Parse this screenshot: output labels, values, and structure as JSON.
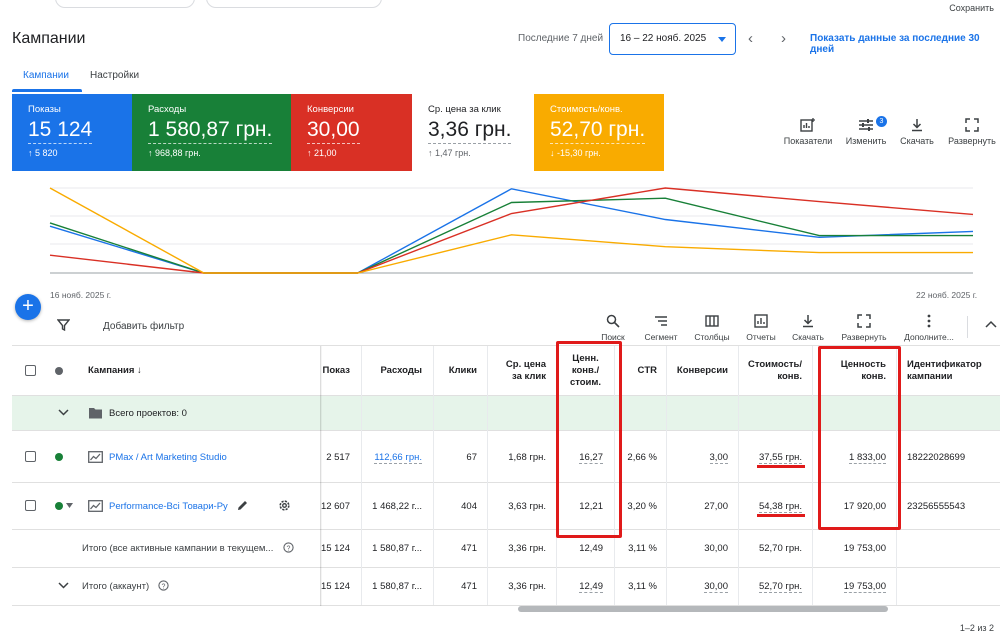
{
  "header": {
    "save_label": "Сохранить",
    "title": "Кампании",
    "range_label": "Последние 7 дней",
    "date_range": "16 – 22 нояб. 2025",
    "show_30_label": "Показать данные за последние 30 дней"
  },
  "tabs": [
    {
      "label": "Кампании",
      "active": true
    },
    {
      "label": "Настройки",
      "active": false
    }
  ],
  "metrics": [
    {
      "label": "Показы",
      "value": "15 124",
      "delta": "↑ 5 820",
      "color": "#1a73e8"
    },
    {
      "label": "Расходы",
      "value": "1 580,87 грн.",
      "delta": "↑ 968,88 грн.",
      "color": "#188038"
    },
    {
      "label": "Конверсии",
      "value": "30,00",
      "delta": "↑ 21,00",
      "color": "#d93025"
    },
    {
      "label": "Ср. цена за клик",
      "value": "3,36 грн.",
      "delta": "↑ 1,47 грн.",
      "color": "#ffffff"
    },
    {
      "label": "Стоимость/конв.",
      "value": "52,70 грн.",
      "delta": "↓ -15,30 грн.",
      "color": "#f9ab00"
    }
  ],
  "card_tools": {
    "indicators": "Показатели",
    "modify": "Изменить",
    "modify_badge": "3",
    "download": "Скачать",
    "expand": "Развернуть"
  },
  "chart_data": {
    "type": "line",
    "x": [
      "16 нояб. 2025",
      "17 нояб. 2025",
      "18 нояб. 2025",
      "19 нояб. 2025",
      "20 нояб. 2025",
      "21 нояб. 2025",
      "22 нояб. 2025"
    ],
    "x_tick_labels": [
      "16 нояб. 2025 г.",
      "22 нояб. 2025 г."
    ],
    "series": [
      {
        "color": "#1a73e8",
        "values": [
          0.55,
          0.0,
          0.0,
          0.99,
          0.63,
          0.42,
          0.49
        ]
      },
      {
        "color": "#188038",
        "values": [
          0.59,
          0.0,
          0.0,
          0.83,
          0.88,
          0.44,
          0.44
        ]
      },
      {
        "color": "#d93025",
        "values": [
          0.21,
          0.0,
          0.0,
          0.7,
          1.0,
          0.84,
          0.69
        ]
      },
      {
        "color": "#f9ab00",
        "values": [
          1.0,
          0.0,
          0.0,
          0.45,
          0.31,
          0.24,
          0.24
        ]
      }
    ],
    "grid": true
  },
  "table_toolbar": {
    "add_filter": "Добавить фильтр",
    "search": "Поиск",
    "segment": "Сегмент",
    "columns": "Столбцы",
    "reports": "Отчеты",
    "download": "Скачать",
    "expand": "Развернуть",
    "more": "Дополните..."
  },
  "table": {
    "headers": {
      "campaign": "Кампания ↓",
      "impressions": "Показ",
      "cost": "Расходы",
      "clicks": "Клики",
      "cpc_1": "Ср. цена",
      "cpc_2": "за клик",
      "vpc_1": "Ценн.",
      "vpc_2": "конв./",
      "vpc_3": "стоим.",
      "ctr": "CTR",
      "conversions": "Конверсии",
      "cpa_1": "Стоимость/",
      "cpa_2": "конв.",
      "conv_value_1": "Ценность",
      "conv_value_2": "конв.",
      "campaign_id_1": "Идентификатор",
      "campaign_id_2": "кампании"
    },
    "group_label": "Всего проектов: 0",
    "rows": [
      {
        "name": "PMax / Art Marketing Studio",
        "impressions": "2 517",
        "cost": "112,66 грн.",
        "clicks": "67",
        "cpc": "1,68 грн.",
        "vpc": "16,27",
        "ctr": "2,66 %",
        "conversions": "3,00",
        "cpa": "37,55 грн.",
        "value": "1 833,00",
        "id": "18222028699"
      },
      {
        "name": "Performance-Всі Товари-Ру",
        "impressions": "12 607",
        "cost": "1 468,22 г...",
        "clicks": "404",
        "cpc": "3,63 грн.",
        "vpc": "12,21",
        "ctr": "3,20 %",
        "conversions": "27,00",
        "cpa": "54,38 грн.",
        "value": "17 920,00",
        "id": "23256555543"
      }
    ],
    "totals": [
      {
        "label": "Итого (все активные кампании в текущем...",
        "impressions": "15 124",
        "cost": "1 580,87 г...",
        "clicks": "471",
        "cpc": "3,36 грн.",
        "vpc": "12,49",
        "ctr": "3,11 %",
        "conversions": "30,00",
        "cpa": "52,70 грн.",
        "value": "19 753,00"
      },
      {
        "label": "Итого (аккаунт)",
        "impressions": "15 124",
        "cost": "1 580,87 г...",
        "clicks": "471",
        "cpc": "3,36 грн.",
        "vpc": "12,49",
        "ctr": "3,11 %",
        "conversions": "30,00",
        "cpa": "52,70 грн.",
        "value": "19 753,00"
      }
    ]
  },
  "pager": "1–2 из 2"
}
